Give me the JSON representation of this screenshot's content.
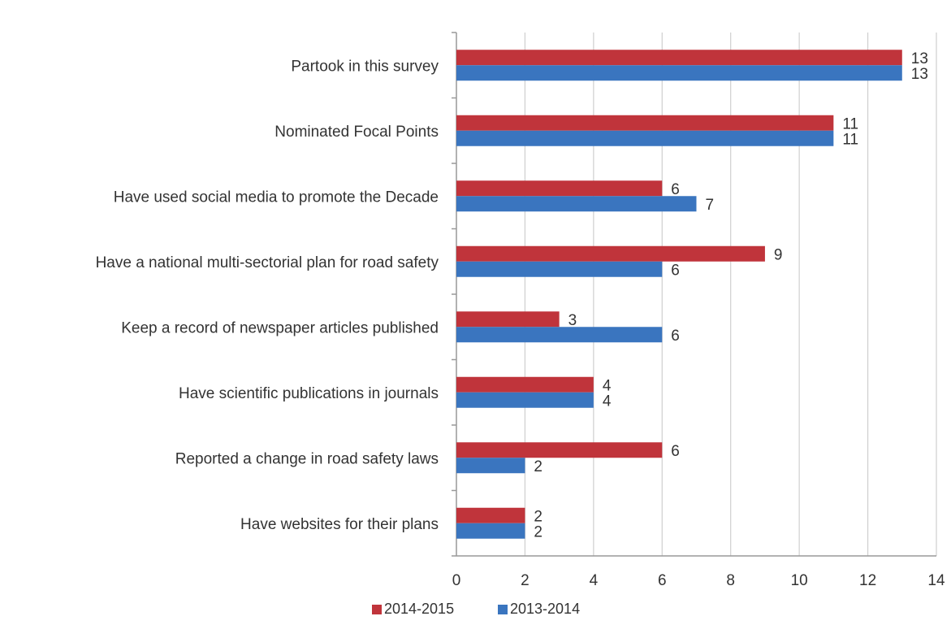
{
  "chart_data": {
    "type": "bar",
    "orientation": "horizontal",
    "title": "",
    "xlabel": "",
    "ylabel": "",
    "categories": [
      "Partook in this survey",
      "Nominated Focal Points",
      "Have used social media to promote the Decade",
      "Have a national multi-sectorial plan for road safety",
      "Keep a record of newspaper articles published",
      "Have scientific publications in journals",
      "Reported a change in road safety laws",
      "Have websites for their plans"
    ],
    "series": [
      {
        "name": "2014-2015",
        "color": "#c0343b",
        "values": [
          13,
          11,
          6,
          9,
          3,
          4,
          6,
          2
        ]
      },
      {
        "name": "2013-2014",
        "color": "#3a75bf",
        "values": [
          13,
          11,
          7,
          6,
          6,
          4,
          2,
          2
        ]
      }
    ],
    "xlim": [
      0,
      14
    ],
    "xticks": [
      0,
      2,
      4,
      6,
      8,
      10,
      12,
      14
    ],
    "grid": "vertical",
    "legend": "bottom-center",
    "data_labels": true
  }
}
